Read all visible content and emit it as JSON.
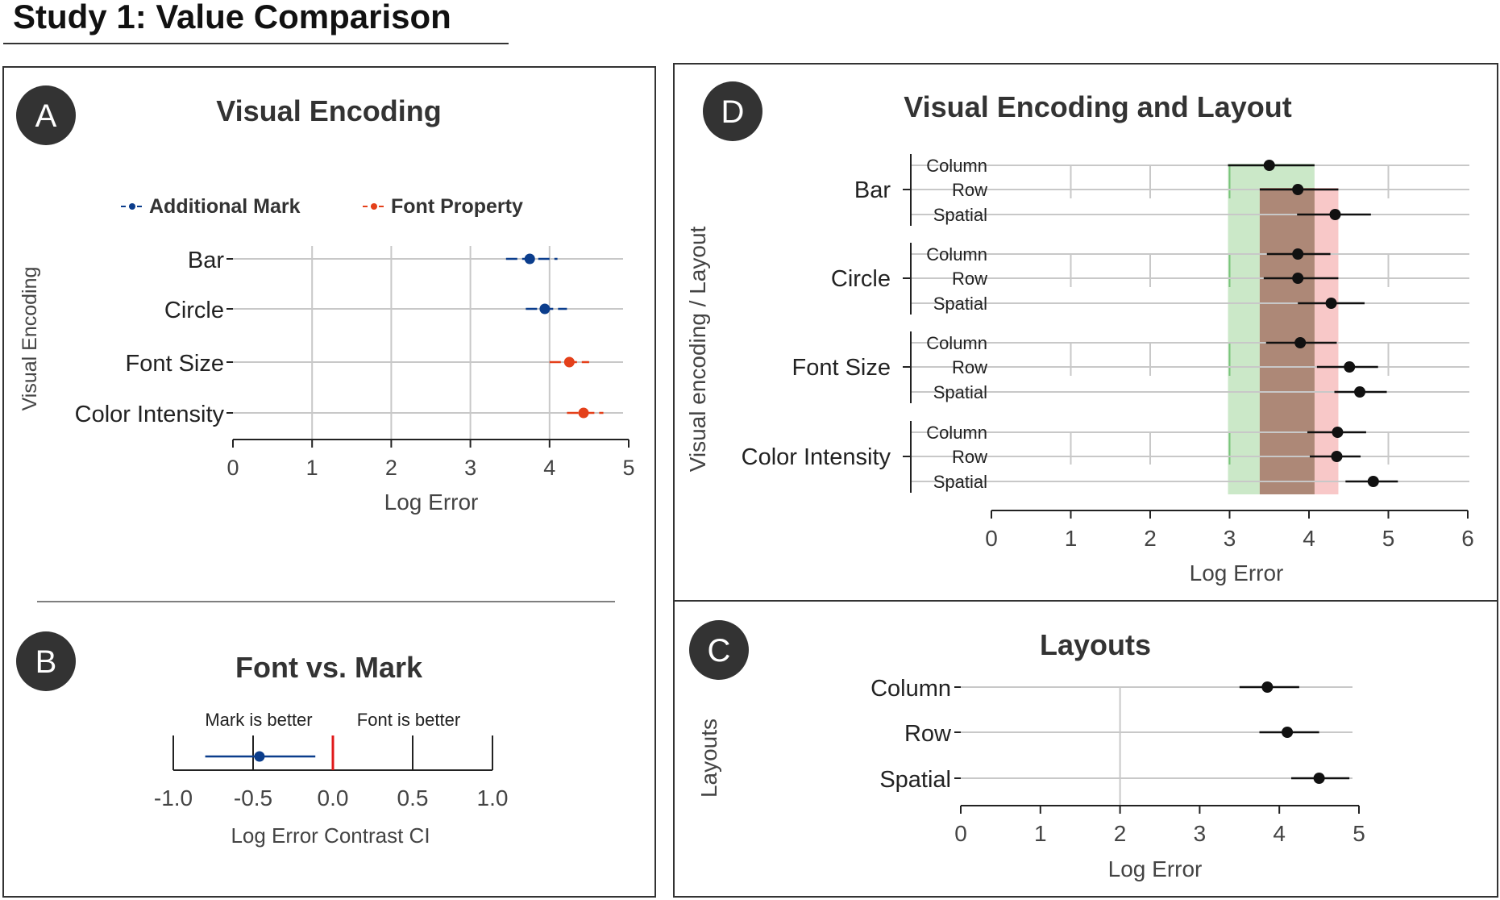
{
  "figure_title": "Study 1: Value Comparison",
  "colors": {
    "mark": "#0b3d8c",
    "font": "#e4401a",
    "zero_line": "#e0191a",
    "grid": "#c8c8c8",
    "band_green": "#a8d9a3",
    "band_red": "#f4a4a4",
    "band_overlap": "#a37e6c"
  },
  "chart_data": [
    {
      "id": "A",
      "badge": "A",
      "type": "scatter",
      "title": "Visual Encoding",
      "xlabel": "Log Error",
      "ylabel": "Visual Encoding",
      "xlim": [
        0,
        5
      ],
      "xticks": [
        "0",
        "1",
        "2",
        "3",
        "4",
        "5"
      ],
      "grid": true,
      "legend_placement": "top",
      "legend": [
        {
          "name": "Additional Mark",
          "color": "#0b3d8c"
        },
        {
          "name": "Font Property",
          "color": "#e4401a"
        }
      ],
      "rows": [
        {
          "label": "Bar",
          "mean": 3.75,
          "lo": 3.45,
          "hi": 4.1,
          "group": "Additional Mark"
        },
        {
          "label": "Circle",
          "mean": 3.94,
          "lo": 3.7,
          "hi": 4.22,
          "group": "Additional Mark"
        },
        {
          "label": "Font Size",
          "mean": 4.25,
          "lo": 4.0,
          "hi": 4.5,
          "group": "Font Property"
        },
        {
          "label": "Color Intensity",
          "mean": 4.43,
          "lo": 4.22,
          "hi": 4.68,
          "group": "Font Property"
        }
      ]
    },
    {
      "id": "B",
      "badge": "B",
      "type": "scatter",
      "title": "Font vs. Mark",
      "xlabel": "Log Error Contrast CI",
      "xlim": [
        -1.0,
        1.0
      ],
      "xticks": [
        "-1.0",
        "-0.5",
        "0.0",
        "0.5",
        "1.0"
      ],
      "annotations": [
        "Mark is better",
        "Font is better"
      ],
      "point": {
        "mean": -0.46,
        "lo": -0.8,
        "hi": -0.11
      }
    },
    {
      "id": "D",
      "badge": "D",
      "type": "scatter",
      "title": "Visual Encoding and Layout",
      "xlabel": "Log Error",
      "ylabel": "Visual encoding / Layout",
      "xlim": [
        0,
        6
      ],
      "xticks": [
        "0",
        "1",
        "2",
        "3",
        "4",
        "5",
        "6"
      ],
      "grid": true,
      "bands": [
        {
          "from": 2.98,
          "to": 4.07,
          "color": "#a8d9a3"
        },
        {
          "from": 3.38,
          "to": 4.37,
          "color": "#f4a4a4"
        }
      ],
      "groups": [
        {
          "label": "Bar",
          "rows": [
            {
              "label": "Column",
              "mean": 3.5,
              "lo": 2.98,
              "hi": 4.07
            },
            {
              "label": "Row",
              "mean": 3.86,
              "lo": 3.38,
              "hi": 4.37
            },
            {
              "label": "Spatial",
              "mean": 4.33,
              "lo": 3.85,
              "hi": 4.78
            }
          ]
        },
        {
          "label": "Circle",
          "rows": [
            {
              "label": "Column",
              "mean": 3.86,
              "lo": 3.47,
              "hi": 4.27
            },
            {
              "label": "Row",
              "mean": 3.86,
              "lo": 3.43,
              "hi": 4.37
            },
            {
              "label": "Spatial",
              "mean": 4.28,
              "lo": 3.86,
              "hi": 4.7
            }
          ]
        },
        {
          "label": "Font Size",
          "rows": [
            {
              "label": "Column",
              "mean": 3.89,
              "lo": 3.46,
              "hi": 4.35
            },
            {
              "label": "Row",
              "mean": 4.51,
              "lo": 4.1,
              "hi": 4.87
            },
            {
              "label": "Spatial",
              "mean": 4.64,
              "lo": 4.32,
              "hi": 4.98
            }
          ]
        },
        {
          "label": "Color Intensity",
          "rows": [
            {
              "label": "Column",
              "mean": 4.36,
              "lo": 3.98,
              "hi": 4.72
            },
            {
              "label": "Row",
              "mean": 4.35,
              "lo": 4.01,
              "hi": 4.65
            },
            {
              "label": "Spatial",
              "mean": 4.81,
              "lo": 4.46,
              "hi": 5.12
            }
          ]
        }
      ]
    },
    {
      "id": "C",
      "badge": "C",
      "type": "scatter",
      "title": "Layouts",
      "xlabel": "Log Error",
      "ylabel": "Layouts",
      "xlim": [
        0,
        5
      ],
      "xticks": [
        "0",
        "1",
        "2",
        "3",
        "4",
        "5"
      ],
      "grid": true,
      "rows": [
        {
          "label": "Column",
          "mean": 3.85,
          "lo": 3.5,
          "hi": 4.25
        },
        {
          "label": "Row",
          "mean": 4.1,
          "lo": 3.75,
          "hi": 4.5
        },
        {
          "label": "Spatial",
          "mean": 4.5,
          "lo": 4.15,
          "hi": 4.88
        }
      ]
    }
  ]
}
